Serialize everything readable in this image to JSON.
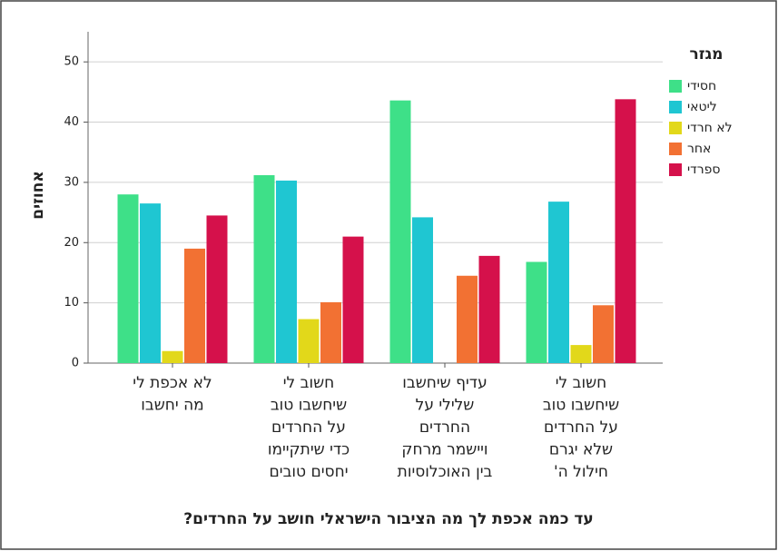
{
  "chart_data": {
    "type": "bar",
    "title": "עד כמה אכפת לך מה הציבור הישראלי חושב על החרדים?",
    "y_label": "אחוזים",
    "legend_title": "מגזר",
    "categories": [
      [
        "לא אכפת לי",
        "מה יחשבו"
      ],
      [
        "חשוב לי",
        "שיחשבו טוב",
        "על החרדים",
        "כדי שיתקיימו",
        "יחסים טובים"
      ],
      [
        "עדיף שיחשבו",
        "שלילי על",
        "החרדים",
        "ויישמר מרחק",
        "בין האוכלוסיות"
      ],
      [
        "חשוב לי",
        "שיחשבו טוב",
        "על החרדים",
        "שלא יגרם",
        "חילול ה'"
      ]
    ],
    "series": [
      {
        "name": "חסידי",
        "color": "#3ee088",
        "values": [
          28,
          31.2,
          43.6,
          16.8
        ]
      },
      {
        "name": "ליטאי",
        "color": "#1fc6d2",
        "values": [
          26.5,
          30.3,
          24.2,
          26.8
        ]
      },
      {
        "name": "לא חרדי",
        "color": "#e2d81a",
        "values": [
          2,
          7.3,
          null,
          3
        ]
      },
      {
        "name": "אחר",
        "color": "#f27133",
        "values": [
          19,
          10.1,
          14.5,
          9.6
        ]
      },
      {
        "name": "ספרדי",
        "color": "#d5114b",
        "values": [
          24.5,
          21,
          17.8,
          43.8
        ]
      }
    ],
    "ylim": [
      0,
      55
    ],
    "yticks": [
      0,
      10,
      20,
      30,
      40,
      50
    ],
    "grid": true,
    "legend": "right"
  }
}
